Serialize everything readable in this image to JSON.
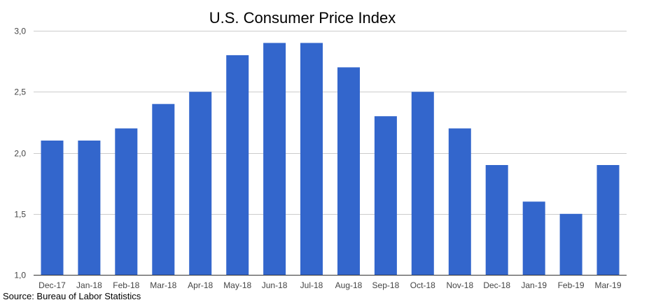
{
  "chart_data": {
    "type": "bar",
    "title": "U.S. Consumer Price Index",
    "xlabel": "",
    "ylabel": "",
    "categories": [
      "Dec-17",
      "Jan-18",
      "Feb-18",
      "Mar-18",
      "Apr-18",
      "May-18",
      "Jun-18",
      "Jul-18",
      "Aug-18",
      "Sep-18",
      "Oct-18",
      "Nov-18",
      "Dec-18",
      "Jan-19",
      "Feb-19",
      "Mar-19"
    ],
    "series": [
      {
        "name": "U.S. Consumer Price Index",
        "values": [
          2.1,
          2.1,
          2.2,
          2.4,
          2.5,
          2.8,
          2.9,
          2.9,
          2.7,
          2.3,
          2.5,
          2.2,
          1.9,
          1.6,
          1.5,
          1.9
        ]
      }
    ],
    "ylim": [
      1.0,
      3.0
    ],
    "yticks": [
      1.0,
      1.5,
      2.0,
      2.5,
      3.0
    ],
    "ytick_labels": [
      "1,0",
      "1,5",
      "2,0",
      "2,5",
      "3,0"
    ],
    "grid": true,
    "legend": "none",
    "bar_color": "#3366cc",
    "grid_color": "#cccccc",
    "annotation": "Source: Bureau of Labor Statistics"
  }
}
